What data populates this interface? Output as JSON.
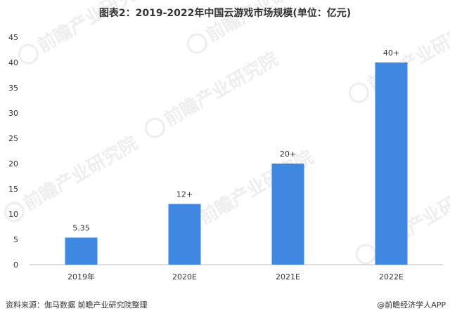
{
  "chart_data": {
    "type": "bar",
    "title": "图表2：2019-2022年中国云游戏市场规模(单位：亿元)",
    "categories": [
      "2019年",
      "2020E",
      "2021E",
      "2022E"
    ],
    "values": [
      5.35,
      12,
      20,
      40
    ],
    "data_labels": [
      "5.35",
      "12+",
      "20+",
      "40+"
    ],
    "ylim": [
      0,
      45
    ],
    "yticks": [
      0,
      5,
      10,
      15,
      20,
      25,
      30,
      35,
      40,
      45
    ],
    "xlabel": "",
    "ylabel": "",
    "grid": false,
    "bar_color": "#3f87e0"
  },
  "footer": {
    "source": "资料来源：伽马数据 前瞻产业研究院整理",
    "credit": "@前瞻经济学人APP"
  },
  "watermark": {
    "text": "前瞻产业研究院"
  }
}
